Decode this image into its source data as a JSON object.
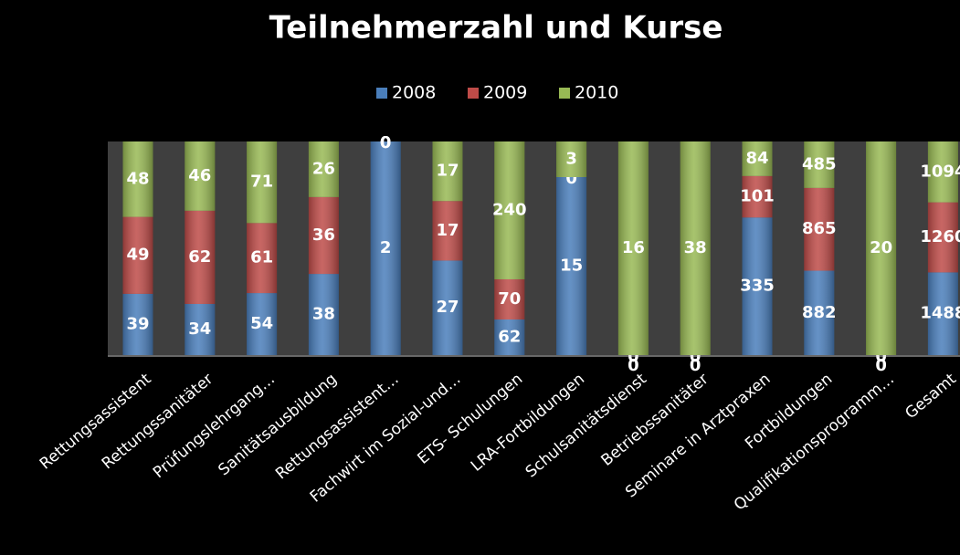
{
  "chart_data": {
    "type": "stacked_bar_percent",
    "title": "Teilnehmerzahl und Kurse",
    "categories": [
      "Rettungsassistent",
      "Rettungssanitäter",
      "Prüfungslehrgang…",
      "Sanitätsausbildung",
      "Rettungsassistent…",
      "Fachwirt im Sozial-und…",
      "ETS- Schulungen",
      "LRA-Fortbildungen",
      "Schulsanitätsdienst",
      "Betriebssanitäter",
      "Seminare in Arztpraxen",
      "Fortbildungen",
      "Qualifikationsprogramm…",
      "Gesamt"
    ],
    "series": [
      {
        "name": "2008",
        "color": "#4a7ebb",
        "values": [
          39,
          34,
          54,
          38,
          2,
          27,
          62,
          15,
          0,
          0,
          335,
          882,
          0,
          1488
        ]
      },
      {
        "name": "2009",
        "color": "#be4b48",
        "values": [
          49,
          62,
          61,
          36,
          0,
          17,
          70,
          0,
          0,
          0,
          101,
          865,
          0,
          1260
        ]
      },
      {
        "name": "2010",
        "color": "#98b954",
        "values": [
          48,
          46,
          71,
          26,
          0,
          17,
          240,
          3,
          16,
          38,
          84,
          485,
          20,
          1094
        ]
      }
    ],
    "legend": "top"
  }
}
